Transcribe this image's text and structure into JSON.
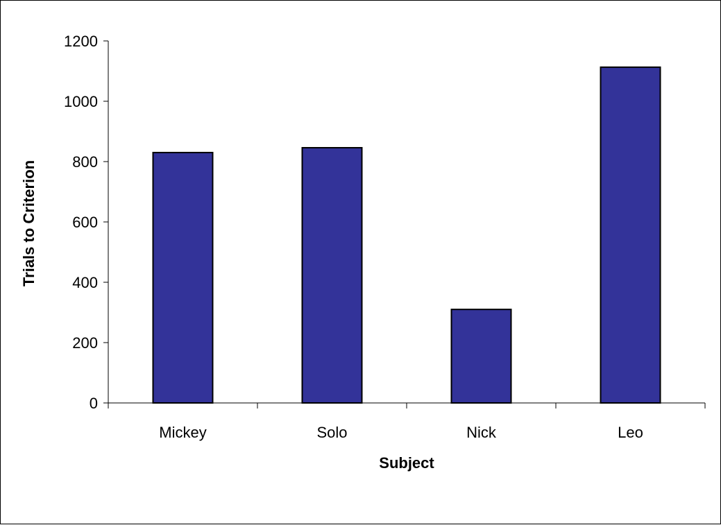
{
  "chart_data": {
    "type": "bar",
    "title": "",
    "xlabel": "Subject",
    "ylabel": "Trials to Criterion",
    "categories": [
      "Mickey",
      "Solo",
      "Nick",
      "Leo"
    ],
    "values": [
      830,
      846,
      310,
      1113
    ],
    "ylim": [
      0,
      1200
    ],
    "yticks": [
      0,
      200,
      400,
      600,
      800,
      1000,
      1200
    ],
    "grid": false,
    "legend": "none",
    "colors": {
      "bar_fill": "#333399",
      "bar_stroke": "#000000",
      "axis": "#000000"
    }
  }
}
